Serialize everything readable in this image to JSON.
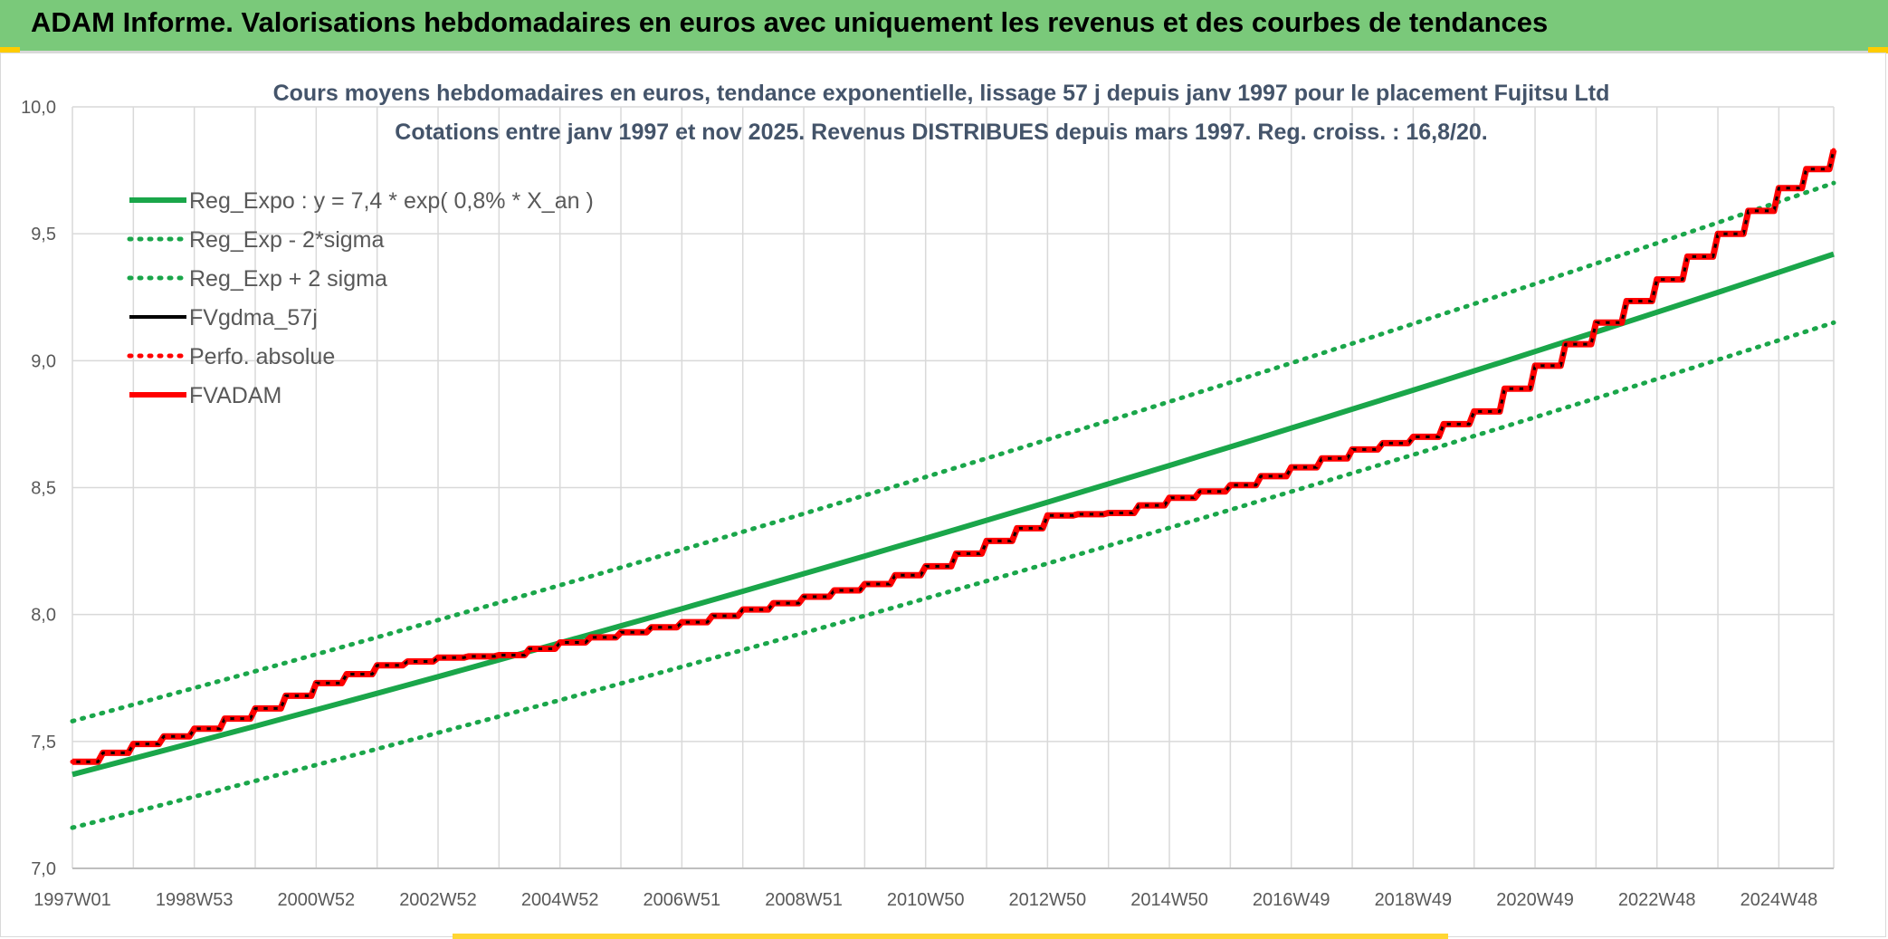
{
  "page_title": "ADAM Informe. Valorisations hebdomadaires en euros avec uniquement les revenus et des courbes de tendances",
  "chart_data": {
    "type": "line",
    "title": "Cours moyens hebdomadaires en euros, tendance exponentielle, lissage 57 j depuis janv 1997 pour le placement Fujitsu Ltd",
    "subtitle": "Cotations entre janv 1997 et nov 2025. Revenus DISTRIBUES depuis mars 1997. Reg. croiss. : 16,8/20.",
    "xlabel": "",
    "ylabel": "",
    "ylim": [
      7.0,
      10.0
    ],
    "xlim": [
      1997.0,
      2025.9
    ],
    "y_ticks": [
      "7,0",
      "7,5",
      "8,0",
      "8,5",
      "9,0",
      "9,5",
      "10,0"
    ],
    "x_ticks": [
      {
        "label": "1997W01",
        "x": 1997.0
      },
      {
        "label": "1998W53",
        "x": 1999.0
      },
      {
        "label": "2000W52",
        "x": 2001.0
      },
      {
        "label": "2002W52",
        "x": 2003.0
      },
      {
        "label": "2004W52",
        "x": 2005.0
      },
      {
        "label": "2006W51",
        "x": 2007.0
      },
      {
        "label": "2008W51",
        "x": 2009.0
      },
      {
        "label": "2010W50",
        "x": 2011.0
      },
      {
        "label": "2012W50",
        "x": 2013.0
      },
      {
        "label": "2014W50",
        "x": 2015.0
      },
      {
        "label": "2016W49",
        "x": 2017.0
      },
      {
        "label": "2018W49",
        "x": 2019.0
      },
      {
        "label": "2020W49",
        "x": 2021.0
      },
      {
        "label": "2022W48",
        "x": 2023.0
      },
      {
        "label": "2024W48",
        "x": 2025.0
      }
    ],
    "grid": true,
    "legend_position": "top-left",
    "series": [
      {
        "name": "Reg_Expo : y = 7,4 * exp( 0,8% *  X_an )",
        "style": "solid-thick",
        "color": "#1aa64a",
        "x": [
          1997.0,
          2025.9
        ],
        "y": [
          7.37,
          9.42
        ]
      },
      {
        "name": "Reg_Exp - 2*sigma",
        "style": "dotted",
        "color": "#1aa64a",
        "x": [
          1997.0,
          2025.9
        ],
        "y": [
          7.16,
          9.15
        ]
      },
      {
        "name": "Reg_Exp + 2 sigma",
        "style": "dotted",
        "color": "#1aa64a",
        "x": [
          1997.0,
          2025.9
        ],
        "y": [
          7.58,
          9.7
        ]
      },
      {
        "name": "FVgdma_57j",
        "style": "solid",
        "color": "#000000",
        "x": [
          1997.0,
          1998.0,
          1999.0,
          2000.0,
          2001.0,
          2002.0,
          2003.0,
          2004.0,
          2005.0,
          2006.0,
          2007.0,
          2008.0,
          2009.0,
          2010.0,
          2011.0,
          2012.0,
          2013.0,
          2014.0,
          2015.0,
          2016.0,
          2017.0,
          2018.0,
          2019.0,
          2020.0,
          2021.0,
          2022.0,
          2023.0,
          2024.0,
          2025.0,
          2025.9
        ],
        "y": [
          7.42,
          7.49,
          7.55,
          7.63,
          7.73,
          7.8,
          7.83,
          7.84,
          7.89,
          7.93,
          7.97,
          8.02,
          8.07,
          8.12,
          8.19,
          8.29,
          8.39,
          8.4,
          8.46,
          8.51,
          8.58,
          8.65,
          8.7,
          8.8,
          8.98,
          9.15,
          9.32,
          9.5,
          9.68,
          9.83
        ]
      },
      {
        "name": "Perfo. absolue",
        "style": "dotted",
        "color": "#ff0000",
        "x": [
          1997.0,
          1998.0,
          1999.0,
          2000.0,
          2001.0,
          2002.0,
          2003.0,
          2004.0,
          2005.0,
          2006.0,
          2007.0,
          2008.0,
          2009.0,
          2010.0,
          2011.0,
          2012.0,
          2013.0,
          2014.0,
          2015.0,
          2016.0,
          2017.0,
          2018.0,
          2019.0,
          2020.0,
          2021.0,
          2022.0,
          2023.0,
          2024.0,
          2025.0,
          2025.9
        ],
        "y": [
          7.42,
          7.49,
          7.55,
          7.63,
          7.73,
          7.8,
          7.83,
          7.84,
          7.89,
          7.93,
          7.97,
          8.02,
          8.07,
          8.12,
          8.19,
          8.29,
          8.39,
          8.4,
          8.46,
          8.51,
          8.58,
          8.65,
          8.7,
          8.8,
          8.98,
          9.15,
          9.32,
          9.5,
          9.68,
          9.83
        ]
      },
      {
        "name": "FVADAM",
        "style": "step-thick",
        "color": "#ff0000",
        "x": [
          1997.0,
          1998.0,
          1999.0,
          2000.0,
          2001.0,
          2002.0,
          2003.0,
          2004.0,
          2005.0,
          2006.0,
          2007.0,
          2008.0,
          2009.0,
          2010.0,
          2011.0,
          2012.0,
          2013.0,
          2014.0,
          2015.0,
          2016.0,
          2017.0,
          2018.0,
          2019.0,
          2020.0,
          2021.0,
          2022.0,
          2023.0,
          2024.0,
          2025.0,
          2025.9
        ],
        "y": [
          7.42,
          7.49,
          7.55,
          7.63,
          7.73,
          7.8,
          7.83,
          7.84,
          7.89,
          7.93,
          7.97,
          8.02,
          8.07,
          8.12,
          8.19,
          8.29,
          8.39,
          8.4,
          8.46,
          8.51,
          8.58,
          8.65,
          8.7,
          8.8,
          8.98,
          9.15,
          9.32,
          9.5,
          9.68,
          9.83
        ]
      }
    ]
  }
}
